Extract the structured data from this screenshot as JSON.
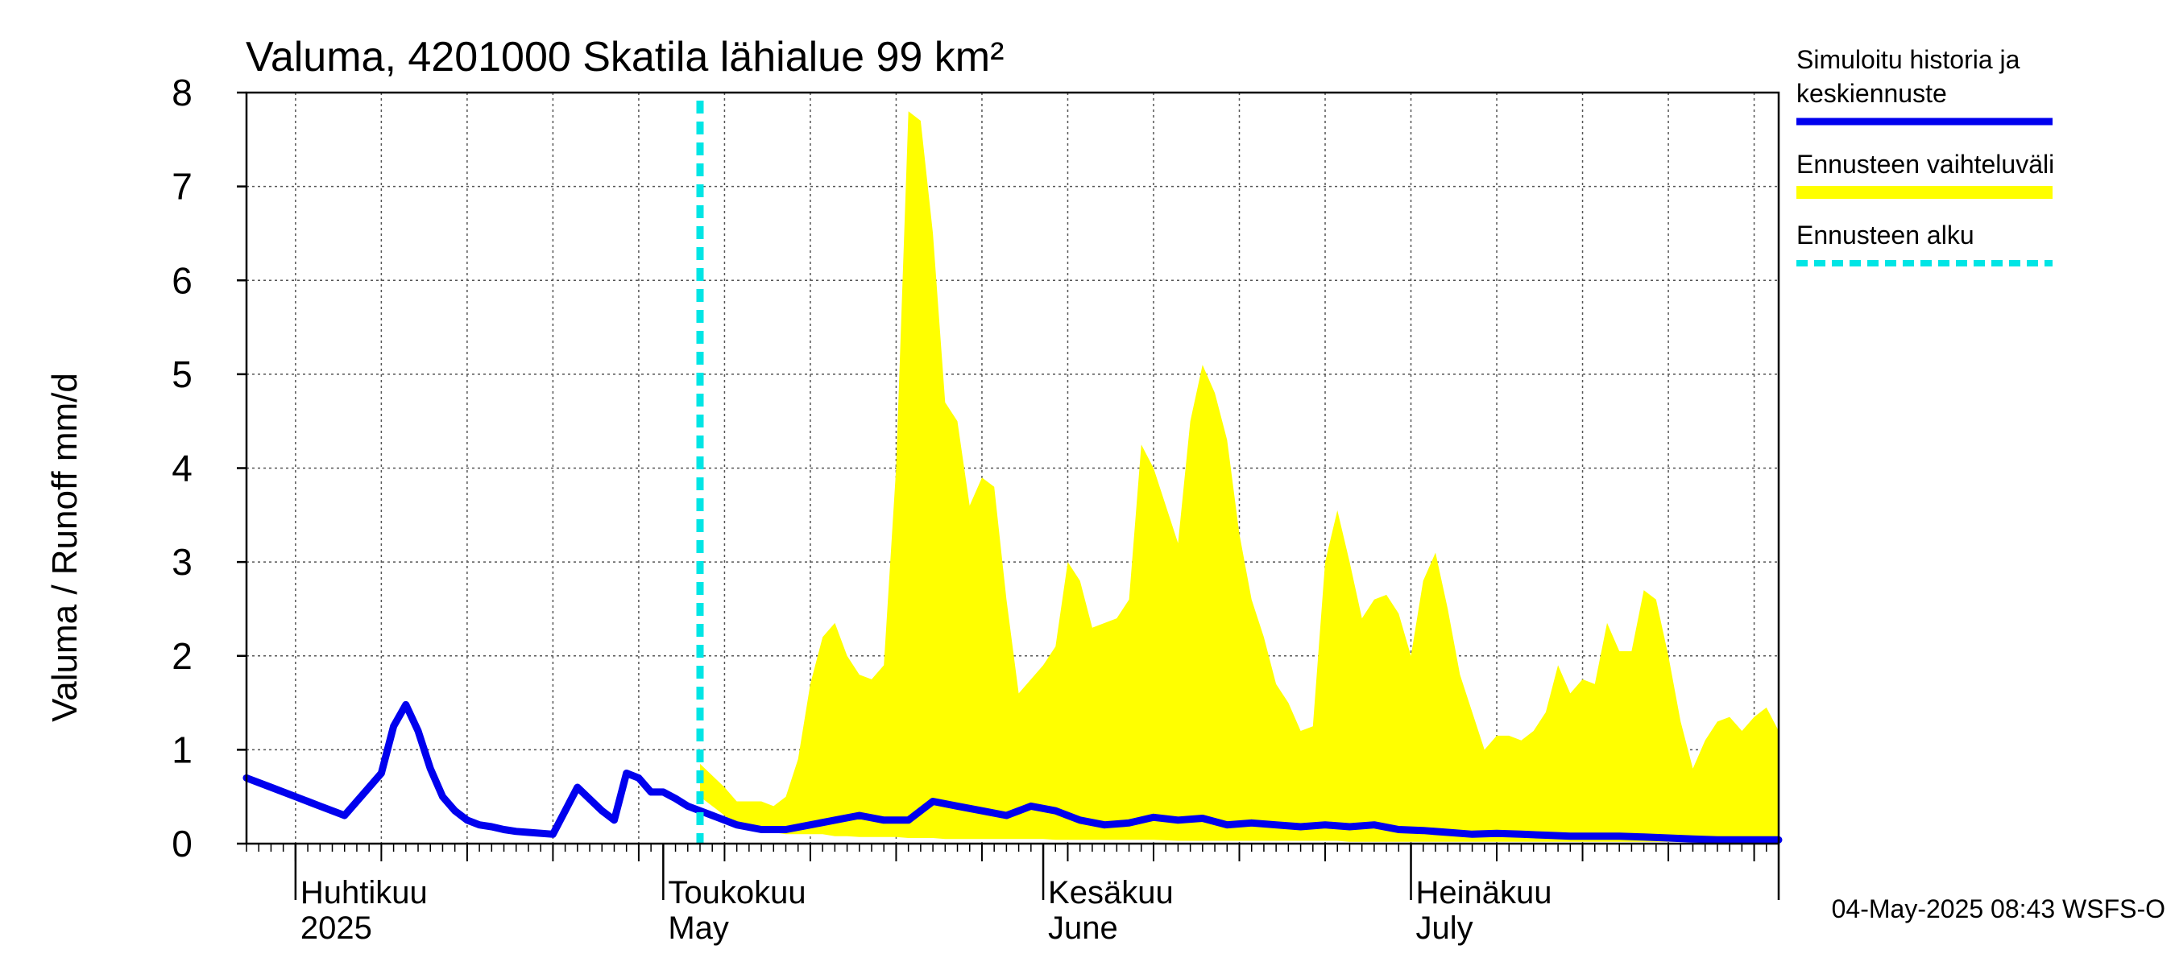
{
  "chart_data": {
    "type": "area",
    "title": "Valuma, 4201000 Skatila lähialue 99 km²",
    "ylabel": "Valuma / Runoff    mm/d",
    "xlabel": "",
    "ylim": [
      0,
      8
    ],
    "yticks": [
      "0",
      "1",
      "2",
      "3",
      "4",
      "5",
      "6",
      "7",
      "8"
    ],
    "grid": true,
    "legend_placement": "right",
    "x_start": "2025-03-28",
    "x_end": "2025-07-31",
    "forecast_start": "2025-05-04",
    "months": [
      {
        "label": "Huhtikuu",
        "sublabel": "2025",
        "date": "2025-04-01"
      },
      {
        "label": "Toukokuu",
        "sublabel": "May",
        "date": "2025-05-01"
      },
      {
        "label": "Kesäkuu",
        "sublabel": "June",
        "date": "2025-06-01"
      },
      {
        "label": "Heinäkuu",
        "sublabel": "July",
        "date": "2025-07-01"
      }
    ],
    "series": [
      {
        "name": "Simuloitu historia ja keskiennuste",
        "color": "#0000ee",
        "x": [
          "2025-03-28",
          "2025-03-30",
          "2025-04-01",
          "2025-04-03",
          "2025-04-05",
          "2025-04-07",
          "2025-04-08",
          "2025-04-09",
          "2025-04-10",
          "2025-04-11",
          "2025-04-12",
          "2025-04-13",
          "2025-04-14",
          "2025-04-15",
          "2025-04-16",
          "2025-04-17",
          "2025-04-18",
          "2025-04-19",
          "2025-04-20",
          "2025-04-22",
          "2025-04-24",
          "2025-04-26",
          "2025-04-27",
          "2025-04-28",
          "2025-04-29",
          "2025-04-30",
          "2025-05-01",
          "2025-05-02",
          "2025-05-03",
          "2025-05-04",
          "2025-05-05",
          "2025-05-06",
          "2025-05-07",
          "2025-05-09",
          "2025-05-11",
          "2025-05-13",
          "2025-05-15",
          "2025-05-17",
          "2025-05-19",
          "2025-05-21",
          "2025-05-23",
          "2025-05-25",
          "2025-05-27",
          "2025-05-29",
          "2025-05-31",
          "2025-06-02",
          "2025-06-04",
          "2025-06-06",
          "2025-06-08",
          "2025-06-10",
          "2025-06-12",
          "2025-06-14",
          "2025-06-16",
          "2025-06-18",
          "2025-06-20",
          "2025-06-22",
          "2025-06-24",
          "2025-06-26",
          "2025-06-28",
          "2025-06-30",
          "2025-07-02",
          "2025-07-04",
          "2025-07-06",
          "2025-07-08",
          "2025-07-10",
          "2025-07-12",
          "2025-07-14",
          "2025-07-16",
          "2025-07-18",
          "2025-07-20",
          "2025-07-22",
          "2025-07-24",
          "2025-07-26",
          "2025-07-28",
          "2025-07-30",
          "2025-07-31"
        ],
        "values": [
          0.7,
          0.6,
          0.5,
          0.4,
          0.3,
          0.6,
          0.75,
          1.25,
          1.48,
          1.2,
          0.8,
          0.5,
          0.35,
          0.25,
          0.2,
          0.18,
          0.15,
          0.13,
          0.12,
          0.1,
          0.6,
          0.35,
          0.25,
          0.75,
          0.7,
          0.55,
          0.55,
          0.48,
          0.4,
          0.35,
          0.3,
          0.25,
          0.2,
          0.15,
          0.15,
          0.2,
          0.25,
          0.3,
          0.25,
          0.25,
          0.45,
          0.4,
          0.35,
          0.3,
          0.4,
          0.35,
          0.25,
          0.2,
          0.22,
          0.28,
          0.25,
          0.27,
          0.2,
          0.22,
          0.2,
          0.18,
          0.2,
          0.18,
          0.2,
          0.15,
          0.14,
          0.12,
          0.1,
          0.11,
          0.1,
          0.09,
          0.08,
          0.08,
          0.08,
          0.07,
          0.06,
          0.05,
          0.04,
          0.04,
          0.04,
          0.04
        ]
      },
      {
        "name": "Ennusteen vaihteluväli",
        "color": "#ffff00",
        "x": [
          "2025-05-04",
          "2025-05-06",
          "2025-05-07",
          "2025-05-09",
          "2025-05-10",
          "2025-05-11",
          "2025-05-12",
          "2025-05-13",
          "2025-05-14",
          "2025-05-15",
          "2025-05-16",
          "2025-05-17",
          "2025-05-18",
          "2025-05-19",
          "2025-05-20",
          "2025-05-21",
          "2025-05-22",
          "2025-05-23",
          "2025-05-24",
          "2025-05-25",
          "2025-05-26",
          "2025-05-27",
          "2025-05-28",
          "2025-05-29",
          "2025-05-30",
          "2025-06-01",
          "2025-06-02",
          "2025-06-03",
          "2025-06-04",
          "2025-06-05",
          "2025-06-07",
          "2025-06-08",
          "2025-06-09",
          "2025-06-10",
          "2025-06-12",
          "2025-06-13",
          "2025-06-14",
          "2025-06-15",
          "2025-06-16",
          "2025-06-17",
          "2025-06-18",
          "2025-06-19",
          "2025-06-20",
          "2025-06-21",
          "2025-06-22",
          "2025-06-23",
          "2025-06-24",
          "2025-06-25",
          "2025-06-26",
          "2025-06-27",
          "2025-06-28",
          "2025-06-29",
          "2025-06-30",
          "2025-07-01",
          "2025-07-02",
          "2025-07-03",
          "2025-07-04",
          "2025-07-05",
          "2025-07-06",
          "2025-07-07",
          "2025-07-08",
          "2025-07-09",
          "2025-07-10",
          "2025-07-11",
          "2025-07-12",
          "2025-07-13",
          "2025-07-14",
          "2025-07-15",
          "2025-07-16",
          "2025-07-17",
          "2025-07-18",
          "2025-07-19",
          "2025-07-20",
          "2025-07-21",
          "2025-07-22",
          "2025-07-23",
          "2025-07-24",
          "2025-07-25",
          "2025-07-26",
          "2025-07-27",
          "2025-07-28",
          "2025-07-29",
          "2025-07-30",
          "2025-07-31"
        ],
        "high": [
          0.85,
          0.6,
          0.45,
          0.45,
          0.4,
          0.5,
          0.9,
          1.7,
          2.2,
          2.35,
          2.0,
          1.8,
          1.75,
          1.9,
          4.0,
          7.8,
          7.7,
          6.5,
          4.7,
          4.5,
          3.6,
          3.9,
          3.8,
          2.6,
          1.6,
          1.9,
          2.1,
          3.0,
          2.8,
          2.3,
          2.4,
          2.6,
          4.25,
          4.0,
          3.2,
          4.5,
          5.1,
          4.8,
          4.3,
          3.3,
          2.6,
          2.2,
          1.7,
          1.5,
          1.2,
          1.25,
          3.0,
          3.55,
          3.0,
          2.4,
          2.6,
          2.65,
          2.45,
          2.0,
          2.8,
          3.1,
          2.5,
          1.8,
          1.4,
          1.0,
          1.15,
          1.15,
          1.1,
          1.2,
          1.4,
          1.9,
          1.6,
          1.75,
          1.7,
          2.35,
          2.05,
          2.05,
          2.7,
          2.6,
          2.0,
          1.3,
          0.8,
          1.1,
          1.3,
          1.35,
          1.2,
          1.35,
          1.45,
          1.2
        ],
        "low": [
          0.5,
          0.3,
          0.2,
          0.15,
          0.12,
          0.1,
          0.1,
          0.1,
          0.1,
          0.08,
          0.08,
          0.07,
          0.07,
          0.07,
          0.07,
          0.06,
          0.06,
          0.06,
          0.05,
          0.05,
          0.05,
          0.05,
          0.05,
          0.05,
          0.05,
          0.05,
          0.04,
          0.04,
          0.04,
          0.04,
          0.04,
          0.04,
          0.04,
          0.04,
          0.03,
          0.03,
          0.03,
          0.03,
          0.03,
          0.03,
          0.03,
          0.03,
          0.03,
          0.03,
          0.03,
          0.03,
          0.03,
          0.03,
          0.02,
          0.02,
          0.02,
          0.02,
          0.02,
          0.02,
          0.02,
          0.02,
          0.02,
          0.02,
          0.02,
          0.02,
          0.02,
          0.02,
          0.02,
          0.02,
          0.02,
          0.02,
          0.02,
          0.02,
          0.02,
          0.02,
          0.02,
          0.02,
          0.02,
          0.02,
          0.02,
          0.02,
          0.02,
          0.02,
          0.02,
          0.02,
          0.02,
          0.02,
          0.02,
          0.02
        ]
      },
      {
        "name": "Ennusteen alku",
        "color": "#00e5e5"
      }
    ],
    "legend": [
      {
        "label": "Simuloitu historia ja keskiennuste",
        "lines": [
          "Simuloitu historia ja",
          "keskiennuste"
        ],
        "style": "solid",
        "color": "#0000ee"
      },
      {
        "label": "Ennusteen vaihteluväli",
        "lines": [
          "Ennusteen vaihteluväli"
        ],
        "style": "band",
        "color": "#ffff00"
      },
      {
        "label": "Ennusteen alku",
        "lines": [
          "Ennusteen alku"
        ],
        "style": "dashed",
        "color": "#00e5e5"
      }
    ],
    "footer": "04-May-2025 08:43 WSFS-O"
  }
}
